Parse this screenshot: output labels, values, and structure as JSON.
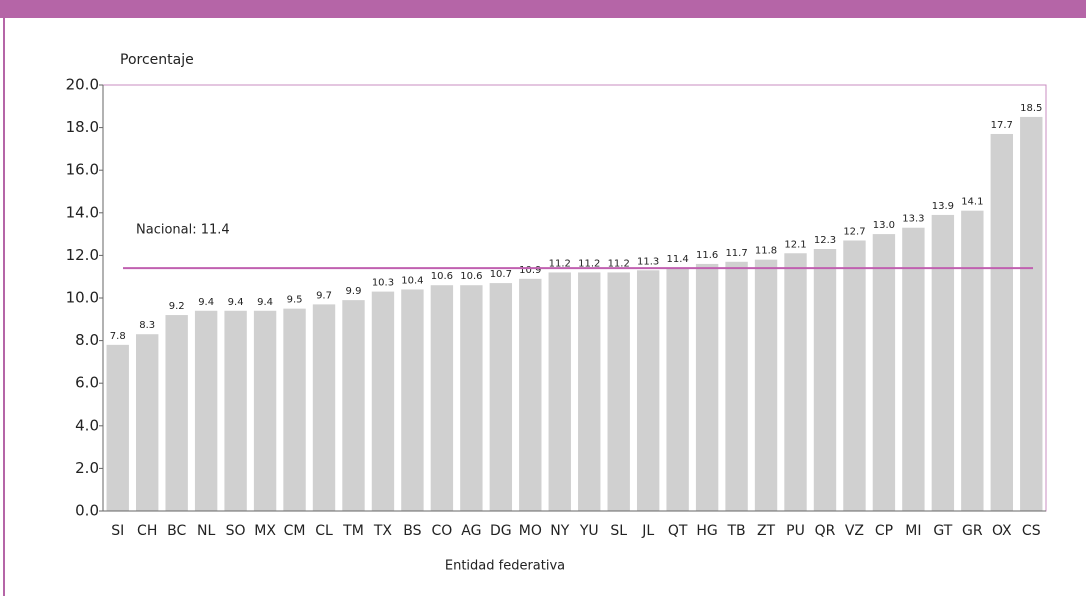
{
  "chart_data": {
    "type": "bar",
    "y_axis_label": "Porcentaje",
    "x_axis_label": "Entidad federativa",
    "categories": [
      "SI",
      "CH",
      "BC",
      "NL",
      "SO",
      "MX",
      "CM",
      "CL",
      "TM",
      "TX",
      "BS",
      "CO",
      "AG",
      "DG",
      "MO",
      "NY",
      "YU",
      "SL",
      "JL",
      "QT",
      "HG",
      "TB",
      "ZT",
      "PU",
      "QR",
      "VZ",
      "CP",
      "MI",
      "GT",
      "GR",
      "OX",
      "CS"
    ],
    "values": [
      7.8,
      8.3,
      9.2,
      9.4,
      9.4,
      9.4,
      9.5,
      9.7,
      9.9,
      10.3,
      10.4,
      10.6,
      10.6,
      10.7,
      10.9,
      11.2,
      11.2,
      11.2,
      11.3,
      11.4,
      11.6,
      11.7,
      11.8,
      12.1,
      12.3,
      12.7,
      13.0,
      13.3,
      13.9,
      14.1,
      17.7,
      18.5
    ],
    "value_labels": [
      "7.8",
      "8.3",
      "9.2",
      "9.4",
      "9.4",
      "9.4",
      "9.5",
      "9.7",
      "9.9",
      "10.3",
      "10.4",
      "10.6",
      "10.6",
      "10.7",
      "10.9",
      "11.2",
      "11.2",
      "11.2",
      "11.3",
      "11.4",
      "11.6",
      "11.7",
      "11.8",
      "12.1",
      "12.3",
      "12.7",
      "13.0",
      "13.3",
      "13.9",
      "14.1",
      "17.7",
      "18.5"
    ],
    "color": "#d0d0d0",
    "ylim": [
      0,
      20
    ],
    "yticks": [
      {
        "value": 0,
        "label": "0.0"
      },
      {
        "value": 2,
        "label": "2.0"
      },
      {
        "value": 4,
        "label": "4.0"
      },
      {
        "value": 6,
        "label": "6.0"
      },
      {
        "value": 8,
        "label": "8.0"
      },
      {
        "value": 10,
        "label": "10.0"
      },
      {
        "value": 12,
        "label": "12.0"
      },
      {
        "value": 14,
        "label": "14.0"
      },
      {
        "value": 16,
        "label": "16.0"
      },
      {
        "value": 18,
        "label": "18.0"
      },
      {
        "value": 20,
        "label": "20.0"
      }
    ],
    "reference_line": {
      "value": 11.4,
      "label": "Nacional: 11.4",
      "color": "#c060b0"
    }
  }
}
